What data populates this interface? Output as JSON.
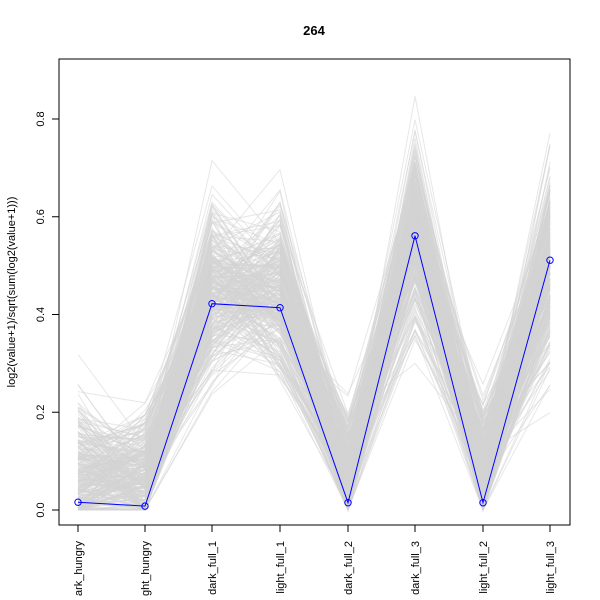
{
  "chart_data": {
    "type": "line",
    "title": "264",
    "xlabel": "",
    "ylabel": "log2(value+1)/sqrt(sum(log2(value+1)))",
    "categories": [
      "dark_hungry",
      "light_hungry",
      "dark_full_1",
      "light_full_1",
      "dark_full_2",
      "dark_full_3",
      "light_full_2",
      "light_full_3"
    ],
    "category_labels_shown": [
      "ark_hungry",
      "ght_hungry",
      "dark_full_1",
      "light_full_1",
      "dark_full_2",
      "dark_full_3",
      "light_full_2",
      "light_full_3"
    ],
    "ylim": [
      -0.02,
      0.9
    ],
    "yticks": [
      0.0,
      0.2,
      0.4,
      0.6,
      0.8
    ],
    "ytick_labels": [
      "0.0",
      "0.2",
      "0.4",
      "0.6",
      "0.8"
    ],
    "grid": false,
    "background_series": {
      "color": "#d3d3d3",
      "count": 300,
      "mean": [
        0.08,
        0.07,
        0.44,
        0.45,
        0.08,
        0.57,
        0.09,
        0.5
      ],
      "spread": [
        0.09,
        0.08,
        0.11,
        0.1,
        0.07,
        0.11,
        0.07,
        0.12
      ],
      "min": [
        0.0,
        0.0,
        0.14,
        0.17,
        0.0,
        0.3,
        0.0,
        0.13
      ],
      "max": [
        0.34,
        0.33,
        0.74,
        0.71,
        0.34,
        0.89,
        0.35,
        0.79
      ]
    },
    "highlight_series": {
      "color": "#0000ff",
      "values": [
        0.016,
        0.008,
        0.422,
        0.414,
        0.015,
        0.561,
        0.015,
        0.511
      ]
    }
  }
}
